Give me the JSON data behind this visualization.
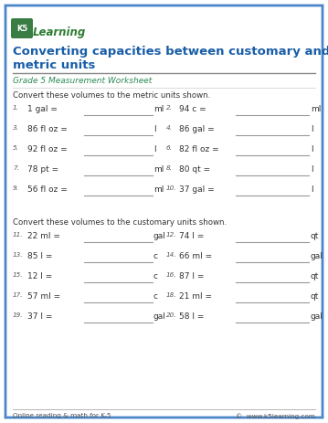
{
  "bg_color": "#ffffff",
  "border_color": "#4a86c8",
  "title_line1": "Converting capacities between customary and",
  "title_line2": "metric units",
  "title_color": "#1a5ea8",
  "subtitle": "Grade 5 Measurement Worksheet",
  "subtitle_color": "#2e8b57",
  "section1_label": "Convert these volumes to the metric units shown.",
  "section2_label": "Convert these volumes to the customary units shown.",
  "footer_left": "Online reading & math for K-5",
  "footer_right": "©  www.k5learning.com",
  "text_color": "#333333",
  "num_color": "#555555",
  "line_color": "#aaaaaa",
  "problems_section1": [
    [
      "1.",
      "1 gal =",
      "ml"
    ],
    [
      "2.",
      "94 c =",
      "ml"
    ],
    [
      "3.",
      "86 fl oz =",
      "l"
    ],
    [
      "4.",
      "86 gal =",
      "l"
    ],
    [
      "5.",
      "92 fl oz =",
      "l"
    ],
    [
      "6.",
      "82 fl oz =",
      "l"
    ],
    [
      "7.",
      "78 pt =",
      "ml"
    ],
    [
      "8.",
      "80 qt =",
      "l"
    ],
    [
      "9.",
      "56 fl oz =",
      "ml"
    ],
    [
      "10.",
      "37 gal =",
      "l"
    ]
  ],
  "problems_section2": [
    [
      "11.",
      "22 ml =",
      "gal"
    ],
    [
      "12.",
      "74 l =",
      "qt"
    ],
    [
      "13.",
      "85 l =",
      "c"
    ],
    [
      "14.",
      "66 ml =",
      "gal"
    ],
    [
      "15.",
      "12 l =",
      "c"
    ],
    [
      "16.",
      "87 l =",
      "qt"
    ],
    [
      "17.",
      "57 ml =",
      "c"
    ],
    [
      "18.",
      "21 ml =",
      "qt"
    ],
    [
      "19.",
      "37 l =",
      "gal"
    ],
    [
      "20.",
      "58 l =",
      "gal"
    ]
  ]
}
